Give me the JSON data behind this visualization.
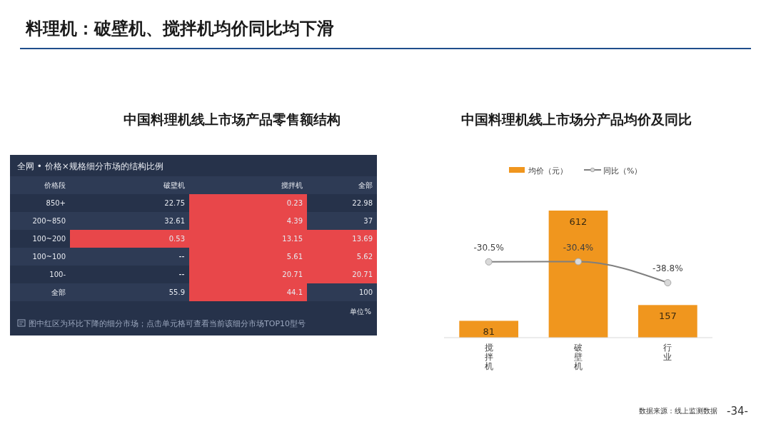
{
  "chart_data": [
    {
      "type": "heatmap",
      "title": "中国料理机线上市场产品零售额结构",
      "subtitle": "全网 • 价格×规格细分市场的结构比例",
      "ylabel": "价格段",
      "categories": [
        "破壁机",
        "搅拌机",
        "全部"
      ],
      "y_categories": [
        "850+",
        "200~850",
        "100~200",
        "100~100",
        "100-",
        "全部"
      ],
      "cells": [
        [
          22.75,
          0.23,
          22.98
        ],
        [
          32.61,
          4.39,
          37
        ],
        [
          0.53,
          13.15,
          13.69
        ],
        [
          null,
          5.61,
          5.62
        ],
        [
          null,
          20.71,
          20.71
        ],
        [
          55.9,
          44.1,
          100
        ]
      ],
      "data_labels": true,
      "colors": [
        [
          "#26324a",
          "#e8474a",
          "#26324a"
        ],
        [
          "#2e3b55",
          "#e8474a",
          "#2e3b55"
        ],
        [
          "#e8474a",
          "#e8474a",
          "#e8474a"
        ],
        [
          "#2e3b55",
          "#e8474a",
          "#e8474a"
        ],
        [
          "#26324a",
          "#e8474a",
          "#e8474a"
        ],
        [
          "#2e3b55",
          "#e8474a",
          "#2e3b55"
        ]
      ],
      "annotations": [
        "料理机：破壁机、搅拌机均价同比均下滑",
        "图中红区为环比下降的细分市场；点击单元格可查看当前该细分市场TOP10型号",
        "单位%"
      ]
    },
    {
      "type": "bar",
      "title": "中国料理机线上市场分产品均价及同比",
      "categories": [
        "搅拌机",
        "破壁机",
        "行业"
      ],
      "series": [
        {
          "name": "均价（元）",
          "type": "bar",
          "color": "#f0961e",
          "values": [
            81,
            612,
            157
          ],
          "value_labels": [
            "81",
            "612",
            "157"
          ]
        },
        {
          "name": "同比（%）",
          "type": "line",
          "axis": "y2",
          "color": "#7f7f7f",
          "values": [
            -30.5,
            -30.4,
            -38.8
          ],
          "value_labels": [
            "-30.5%",
            "-30.4%",
            "-38.8%"
          ]
        }
      ],
      "marker": "circle",
      "legend": "top",
      "annotations": [
        "数据来源：线上监测数据",
        "-34-"
      ]
    }
  ]
}
